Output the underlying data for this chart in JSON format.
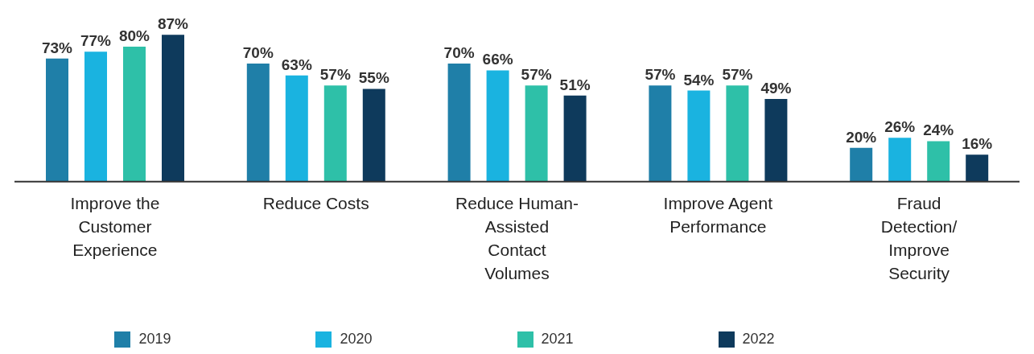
{
  "chart_data": {
    "type": "bar",
    "categories": [
      "Improve the Customer Experience",
      "Reduce Costs",
      "Reduce Human-Assisted Contact Volumes",
      "Improve Agent Performance",
      "Fraud Detection/ Improve Security"
    ],
    "series": [
      {
        "name": "2019",
        "color": "#1f7fa8",
        "values": [
          73,
          70,
          70,
          57,
          20
        ],
        "value_labels": [
          "73%",
          "70%",
          "70%",
          "57%",
          "20%"
        ]
      },
      {
        "name": "2020",
        "color": "#1ab3e0",
        "values": [
          77,
          63,
          66,
          54,
          26
        ],
        "value_labels": [
          "77%",
          "63%",
          "66%",
          "54%",
          "26%"
        ]
      },
      {
        "name": "2021",
        "color": "#2ec0a8",
        "values": [
          80,
          57,
          57,
          57,
          24
        ],
        "value_labels": [
          "80%",
          "57%",
          "57%",
          "57%",
          "24%"
        ]
      },
      {
        "name": "2022",
        "color": "#0e3a5c",
        "values": [
          87,
          55,
          51,
          49,
          16
        ],
        "value_labels": [
          "87%",
          "55%",
          "51%",
          "49%",
          "16%"
        ]
      }
    ],
    "legend": "bottom",
    "grid": false
  }
}
